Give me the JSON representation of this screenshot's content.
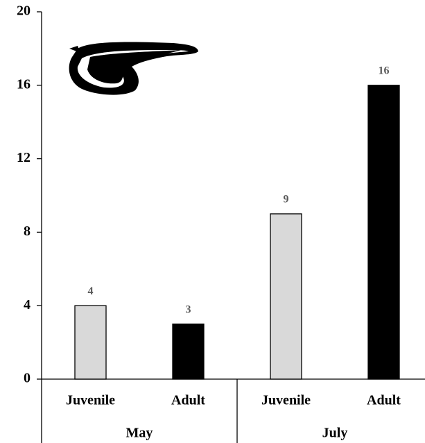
{
  "chart_data": {
    "type": "bar",
    "categories": [
      "Juvenile",
      "Adult",
      "Juvenile",
      "Adult"
    ],
    "groups": [
      "May",
      "July"
    ],
    "values": [
      4,
      3,
      9,
      16
    ],
    "colors": [
      "#d9d9d9",
      "#000000",
      "#d9d9d9",
      "#000000"
    ],
    "ylim": [
      0,
      20
    ],
    "yticks": [
      0,
      4,
      8,
      12,
      16,
      20
    ],
    "grid": false
  }
}
